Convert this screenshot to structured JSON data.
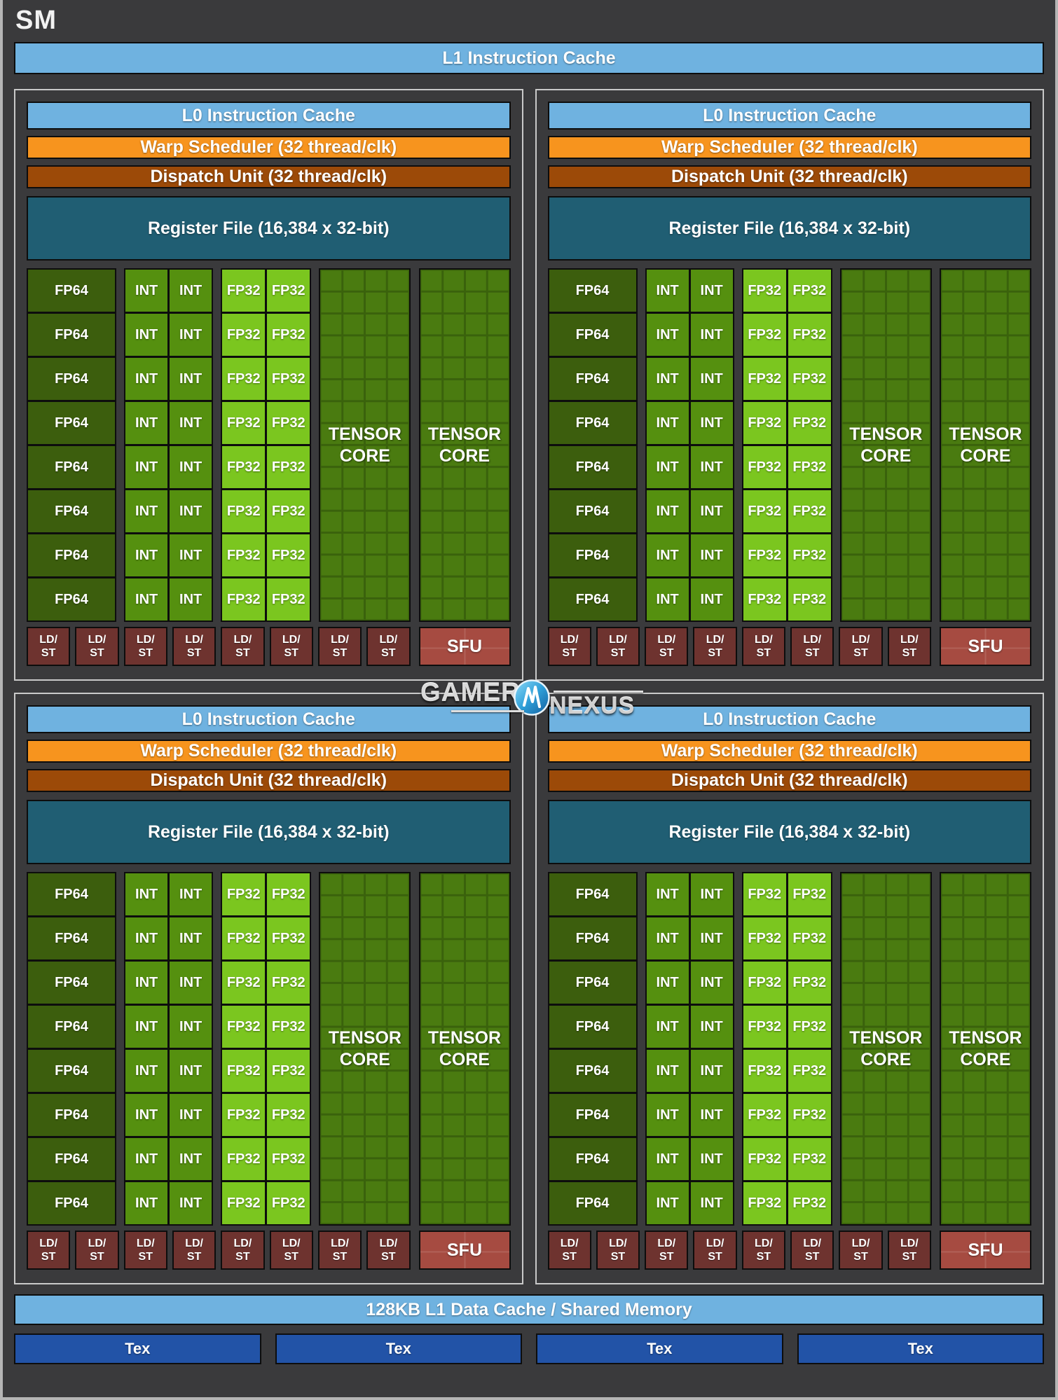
{
  "header": {
    "title": "SM"
  },
  "bars": {
    "l1_instruction": "L1 Instruction Cache",
    "l0_instruction": "L0 Instruction Cache",
    "warp_scheduler": "Warp Scheduler (32 thread/clk)",
    "dispatch_unit": "Dispatch Unit (32 thread/clk)",
    "register_file": "Register File (16,384 x 32-bit)",
    "l1_data": "128KB L1 Data Cache / Shared Memory",
    "tex": "Tex"
  },
  "labels": {
    "fp64": "FP64",
    "int": "INT",
    "fp32": "FP32",
    "tensor_line1": "TENSOR",
    "tensor_line2": "CORE",
    "ldst_line1": "LD/",
    "ldst_line2": "ST",
    "sfu": "SFU"
  },
  "layout": {
    "partitions": 4,
    "core_rows": 8,
    "int_columns": 2,
    "fp32_columns": 2,
    "tensor_cores_per_partition": 2,
    "ldst_per_partition": 8,
    "tex_units": 4
  },
  "watermark": {
    "brand_left": "GAMERS",
    "brand_right": "NEXUS"
  },
  "colors": {
    "bg": "#3a3a3c",
    "black": "#0d0d0d",
    "frame_light": "#c9c9c9",
    "cache_blue": "#6fb2e0",
    "scheduler_orange": "#f7941e",
    "dispatch_brown": "#9c4a08",
    "register_teal": "#205e73",
    "fp64_green": "#3c5e0d",
    "int_green": "#55900f",
    "fp32_green": "#7bc61f",
    "tensor_green": "#4a7b10",
    "tensor_line": "#3a620c",
    "ldst_maroon": "#6e332f",
    "sfu_red": "#a64b41",
    "tex_blue": "#2253a7",
    "brand_silver": "#d9d9d9",
    "logo_blue": "#2e9fd8"
  }
}
